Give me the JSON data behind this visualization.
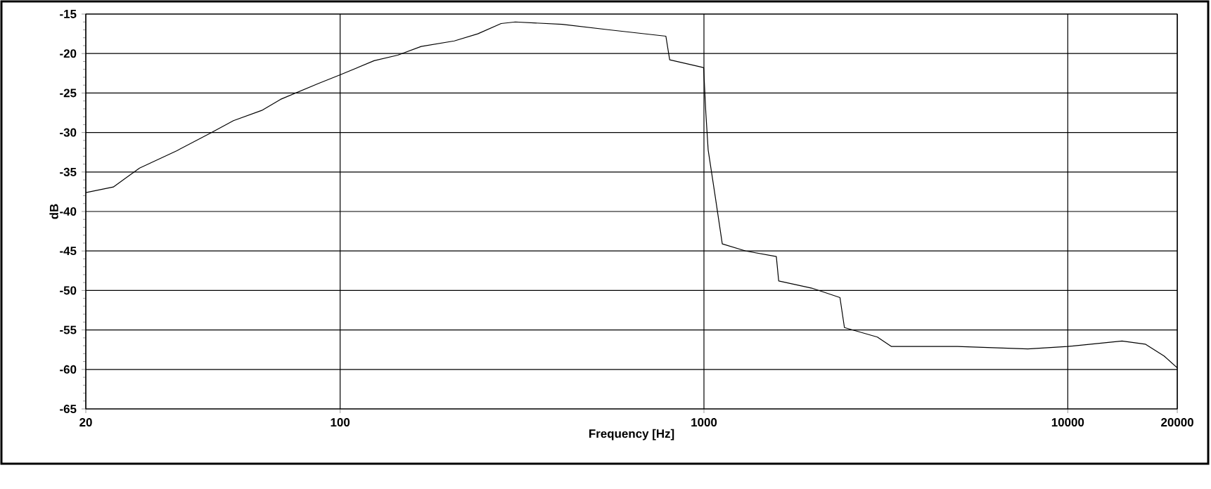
{
  "chart_data": {
    "type": "line",
    "xlabel": "Frequency [Hz]",
    "ylabel": "dB",
    "log": "x",
    "grid": true,
    "xlim": [
      20,
      20000
    ],
    "ylim": [
      -65,
      -15
    ],
    "xticks": [
      20,
      100,
      1000,
      10000,
      20000
    ],
    "yticks": [
      -65,
      -60,
      -55,
      -50,
      -45,
      -40,
      -35,
      -30,
      -25,
      -20,
      -15
    ],
    "series": [
      {
        "color": "#000000",
        "x": [
          20,
          23.8,
          28.1,
          35.6,
          43.9,
          50.9,
          60.9,
          68.6,
          87.0,
          100,
          124,
          144,
          167,
          206,
          239,
          277,
          303,
          408,
          550,
          786,
          805,
          982,
          998,
          1012,
          1027,
          1074,
          1123,
          1303,
          1581,
          1605,
          1978,
          2365,
          2433,
          2997,
          3277,
          4974,
          7770,
          10000,
          14100,
          16330,
          18400,
          20000
        ],
        "values": [
          -37.6,
          -36.9,
          -34.5,
          -32.3,
          -30.1,
          -28.5,
          -27.2,
          -25.8,
          -23.8,
          -22.7,
          -20.9,
          -20.2,
          -19.1,
          -18.4,
          -17.5,
          -16.2,
          -16.0,
          -16.3,
          -17.0,
          -17.8,
          -20.8,
          -21.7,
          -21.8,
          -27.5,
          -32.2,
          -38.1,
          -44.1,
          -45.0,
          -45.7,
          -48.8,
          -49.7,
          -50.9,
          -54.7,
          -55.9,
          -57.1,
          -57.1,
          -57.4,
          -57.1,
          -56.4,
          -56.8,
          -58.3,
          -59.8
        ]
      }
    ]
  }
}
